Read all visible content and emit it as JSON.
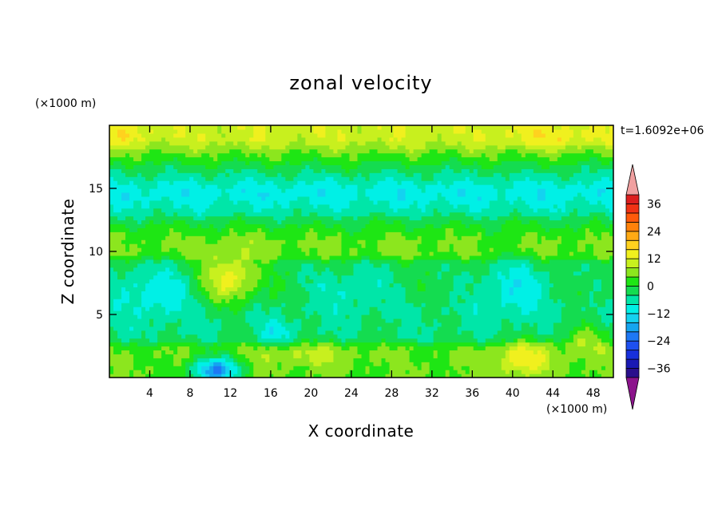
{
  "chart_data": {
    "type": "heatmap",
    "title": "zonal velocity",
    "xlabel": "X coordinate",
    "ylabel": "Z coordinate",
    "x_unit": "(×1000 m)",
    "y_unit": "(×1000 m)",
    "timestamp": "t=1.6092e+06",
    "xlim": [
      0,
      50
    ],
    "ylim": [
      0,
      20
    ],
    "x_ticks": [
      4,
      8,
      12,
      16,
      20,
      24,
      28,
      32,
      36,
      40,
      44,
      48
    ],
    "x_tick_labels": [
      "4",
      "8",
      "12",
      "16",
      "20",
      "24",
      "28",
      "32",
      "36",
      "40",
      "44",
      "48"
    ],
    "y_ticks": [
      5,
      10,
      15
    ],
    "y_tick_labels": [
      "5",
      "10",
      "15"
    ],
    "colorbar": {
      "levels": [
        -40,
        -36,
        -32,
        -28,
        -24,
        -20,
        -16,
        -12,
        -8,
        -4,
        0,
        4,
        8,
        12,
        16,
        20,
        24,
        28,
        32,
        36,
        40
      ],
      "labels": [
        "36",
        "24",
        "12",
        "0",
        "−12",
        "−24",
        "−36"
      ],
      "label_values": [
        36,
        24,
        12,
        0,
        -12,
        -24,
        -36
      ],
      "colors": [
        "#2a0f8c",
        "#1a1ab4",
        "#1830dc",
        "#1e50f0",
        "#1e78f5",
        "#14a5f0",
        "#14d2f0",
        "#00f0e6",
        "#00e6a8",
        "#14dc50",
        "#1ee614",
        "#8ce61e",
        "#c8f01e",
        "#f0f01e",
        "#ffd21e",
        "#ffaa14",
        "#ff820a",
        "#ff5a0a",
        "#f03214",
        "#dc1e1e"
      ],
      "extend_low_color": "#8c148c",
      "extend_high_color": "#f0a0a0"
    },
    "field_features": [
      {
        "kind": "band",
        "z": 18.9,
        "value": 11
      },
      {
        "kind": "band",
        "z": 17.6,
        "value": 3
      },
      {
        "kind": "band",
        "z": 16.2,
        "value": -4
      },
      {
        "kind": "band",
        "z": 14.8,
        "value": -11
      },
      {
        "kind": "band",
        "z": 13.3,
        "value": -7
      },
      {
        "kind": "band",
        "z": 12.0,
        "value": 1
      },
      {
        "kind": "band",
        "z": 10.8,
        "value": 5
      },
      {
        "kind": "band",
        "z": 8.0,
        "value": -2
      },
      {
        "kind": "band",
        "z": 4.0,
        "value": -4
      },
      {
        "kind": "band",
        "z": 1.5,
        "value": 4
      },
      {
        "kind": "blob",
        "x": 4.5,
        "z": 6.8,
        "rx": 5.0,
        "rz": 2.6,
        "value": -11
      },
      {
        "kind": "blob",
        "x": 12.0,
        "z": 8.0,
        "rx": 3.5,
        "rz": 2.4,
        "value": 14
      },
      {
        "kind": "blob",
        "x": 10.5,
        "z": 0.6,
        "rx": 3.0,
        "rz": 1.3,
        "value": -20
      },
      {
        "kind": "blob",
        "x": 16.5,
        "z": 3.6,
        "rx": 2.0,
        "rz": 1.2,
        "value": -10
      },
      {
        "kind": "blob",
        "x": 24.0,
        "z": 7.0,
        "rx": 5.0,
        "rz": 2.2,
        "value": -8
      },
      {
        "kind": "blob",
        "x": 40.0,
        "z": 7.0,
        "rx": 4.5,
        "rz": 2.8,
        "value": -11
      },
      {
        "kind": "blob",
        "x": 41.0,
        "z": 1.5,
        "rx": 3.5,
        "rz": 1.6,
        "value": 15
      },
      {
        "kind": "blob",
        "x": 47.0,
        "z": 2.6,
        "rx": 3.0,
        "rz": 1.8,
        "value": 8
      },
      {
        "kind": "blob",
        "x": 1.5,
        "z": 19.3,
        "rx": 3.0,
        "rz": 0.9,
        "value": 15
      },
      {
        "kind": "blob",
        "x": 44.0,
        "z": 19.2,
        "rx": 6.0,
        "rz": 1.0,
        "value": 15
      },
      {
        "kind": "blob",
        "x": 20.0,
        "z": 1.8,
        "rx": 6.0,
        "rz": 1.0,
        "value": 9
      }
    ]
  }
}
